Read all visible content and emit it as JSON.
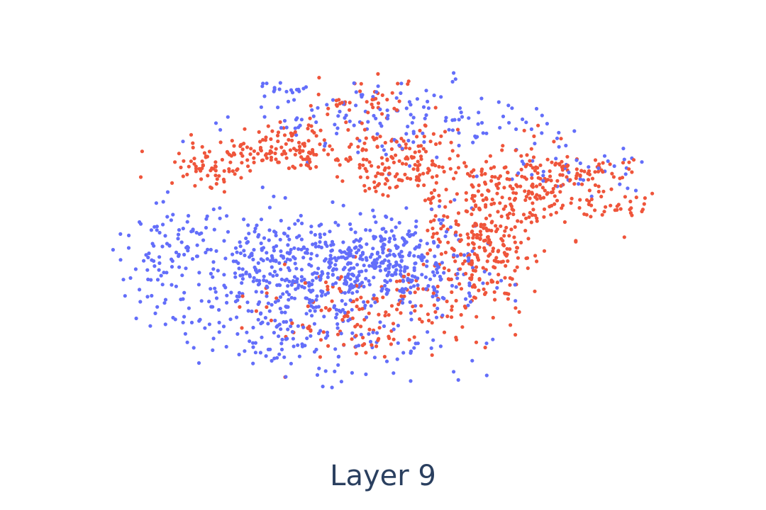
{
  "chart_data": {
    "type": "scatter",
    "title": "Layer 9",
    "xlabel": "",
    "ylabel": "",
    "xlim": [
      0,
      100
    ],
    "ylim": [
      0,
      100
    ],
    "grid": false,
    "axes_visible": false,
    "legend": "none",
    "colors": {
      "series_a": "#636efa",
      "series_b": "#ef553b"
    },
    "clusters": [
      {
        "series": 0,
        "cx": 37,
        "cy": 44,
        "sx": 11,
        "sy": 8,
        "n": 520
      },
      {
        "series": 0,
        "cx": 54,
        "cy": 47,
        "sx": 6,
        "sy": 6,
        "n": 200
      },
      {
        "series": 0,
        "cx": 12,
        "cy": 53,
        "sx": 4,
        "sy": 6,
        "n": 60
      },
      {
        "series": 0,
        "cx": 52,
        "cy": 85,
        "sx": 13,
        "sy": 5,
        "n": 150
      },
      {
        "series": 0,
        "cx": 40,
        "cy": 24,
        "sx": 12,
        "sy": 5,
        "n": 120
      },
      {
        "series": 0,
        "cx": 34,
        "cy": 93,
        "sx": 2,
        "sy": 1,
        "n": 12
      },
      {
        "series": 0,
        "cx": 83,
        "cy": 72,
        "sx": 7,
        "sy": 4,
        "n": 40
      },
      {
        "series": 0,
        "cx": 14,
        "cy": 38,
        "sx": 5,
        "sy": 6,
        "n": 40
      },
      {
        "series": 1,
        "cx": 67,
        "cy": 52,
        "sx": 5,
        "sy": 10,
        "n": 260
      },
      {
        "series": 1,
        "cx": 78,
        "cy": 66,
        "sx": 7,
        "sy": 6,
        "n": 230
      },
      {
        "series": 1,
        "cx": 53,
        "cy": 73,
        "sx": 6,
        "sy": 5,
        "n": 150
      },
      {
        "series": 1,
        "cx": 33,
        "cy": 76,
        "sx": 8,
        "sy": 3,
        "n": 160
      },
      {
        "series": 1,
        "cx": 20,
        "cy": 71,
        "sx": 3,
        "sy": 3,
        "n": 45
      },
      {
        "series": 1,
        "cx": 47,
        "cy": 32,
        "sx": 10,
        "sy": 6,
        "n": 150
      },
      {
        "series": 1,
        "cx": 47,
        "cy": 90,
        "sx": 5,
        "sy": 3,
        "n": 40
      },
      {
        "series": 1,
        "cx": 92,
        "cy": 62,
        "sx": 2,
        "sy": 2,
        "n": 12
      }
    ],
    "seed": 9
  }
}
